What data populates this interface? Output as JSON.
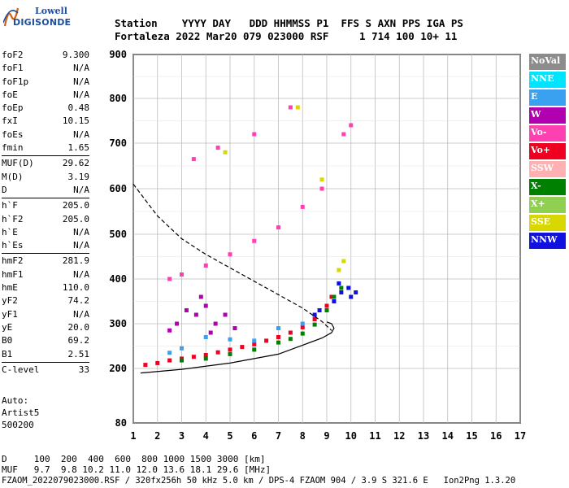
{
  "logo": {
    "line1": "Lowell",
    "line2": "DIGISONDE"
  },
  "header": {
    "line1": "Station    YYYY DAY   DDD HHMMSS P1  FFS S AXN PPS IGA PS",
    "line2": "Fortaleza 2022 Mar20 079 023000 RSF     1 714 100 10+ 11"
  },
  "params": {
    "group1": [
      {
        "name": "foF2",
        "value": "9.300"
      },
      {
        "name": "foF1",
        "value": "N/A"
      },
      {
        "name": "foF1p",
        "value": "N/A"
      },
      {
        "name": "foE",
        "value": "N/A"
      },
      {
        "name": "foEp",
        "value": "0.48"
      },
      {
        "name": "fxI",
        "value": "10.15"
      },
      {
        "name": "foEs",
        "value": "N/A"
      },
      {
        "name": "fmin",
        "value": "1.65"
      }
    ],
    "group2": [
      {
        "name": "MUF(D)",
        "value": "29.62"
      },
      {
        "name": "M(D)",
        "value": "3.19"
      },
      {
        "name": "D",
        "value": "N/A"
      }
    ],
    "group3": [
      {
        "name": "h`F",
        "value": "205.0"
      },
      {
        "name": "h`F2",
        "value": "205.0"
      },
      {
        "name": "h`E",
        "value": "N/A"
      },
      {
        "name": "h`Es",
        "value": "N/A"
      }
    ],
    "group4": [
      {
        "name": "hmF2",
        "value": "281.9"
      },
      {
        "name": "hmF1",
        "value": "N/A"
      },
      {
        "name": "hmE",
        "value": "110.0"
      },
      {
        "name": "yF2",
        "value": "74.2"
      },
      {
        "name": "yF1",
        "value": "N/A"
      },
      {
        "name": "yE",
        "value": "20.0"
      },
      {
        "name": "B0",
        "value": "69.2"
      },
      {
        "name": "B1",
        "value": "2.51"
      }
    ],
    "group5": [
      {
        "name": "C-level",
        "value": "33"
      }
    ]
  },
  "auto": {
    "line1": "Auto:",
    "line2": "Artist5",
    "line3": "500200"
  },
  "legend": [
    {
      "label": "NoVal",
      "color": "#8c8c8c"
    },
    {
      "label": "NNE",
      "color": "#00e5ff"
    },
    {
      "label": "E",
      "color": "#3aa0f0"
    },
    {
      "label": "W",
      "color": "#b000b0"
    },
    {
      "label": "Vo-",
      "color": "#ff40b0"
    },
    {
      "label": "Vo+",
      "color": "#f00020"
    },
    {
      "label": "SSW",
      "color": "#ffb0b0"
    },
    {
      "label": "X-",
      "color": "#008000"
    },
    {
      "label": "X+",
      "color": "#90d050"
    },
    {
      "label": "SSE",
      "color": "#d8d800"
    },
    {
      "label": "NNW",
      "color": "#1010e0"
    }
  ],
  "footer": {
    "line1": "D     100  200  400  600  800 1000 1500 3000 [km]",
    "line2": "MUF   9.7  9.8 10.2 11.0 12.0 13.6 18.1 29.6 [MHz]",
    "line3": "FZAOM_2022079023000.RSF / 320fx256h 50 kHz 5.0 km / DPS-4 FZAOM 904 / 3.9 S 321.6 E   Ion2Png 1.3.20"
  },
  "chart_data": {
    "type": "scatter",
    "xlim": [
      1,
      17
    ],
    "ylim": [
      80,
      900
    ],
    "x_ticks": [
      1,
      2,
      3,
      4,
      5,
      6,
      7,
      8,
      9,
      10,
      11,
      12,
      13,
      14,
      15,
      16,
      17
    ],
    "y_ticks": [
      80,
      200,
      300,
      400,
      500,
      600,
      700,
      800,
      900
    ],
    "y_tick_labels": [
      "80",
      "200",
      "300",
      "400",
      "500",
      "600",
      "700",
      "800",
      "900"
    ],
    "grid": true,
    "legend_position": "right",
    "series": [
      {
        "name": "Vo+",
        "color": "#f00020",
        "points": [
          [
            1.5,
            208
          ],
          [
            2,
            212
          ],
          [
            2.5,
            218
          ],
          [
            3,
            222
          ],
          [
            3.5,
            226
          ],
          [
            4,
            230
          ],
          [
            4.5,
            236
          ],
          [
            5,
            242
          ],
          [
            5.5,
            248
          ],
          [
            6,
            254
          ],
          [
            6.5,
            262
          ],
          [
            7,
            270
          ],
          [
            7.5,
            280
          ],
          [
            8,
            292
          ],
          [
            8.5,
            310
          ],
          [
            9,
            340
          ],
          [
            9.2,
            360
          ]
        ]
      },
      {
        "name": "X-",
        "color": "#008000",
        "points": [
          [
            3,
            218
          ],
          [
            4,
            222
          ],
          [
            5,
            232
          ],
          [
            6,
            242
          ],
          [
            7,
            258
          ],
          [
            7.5,
            266
          ],
          [
            8,
            278
          ],
          [
            8.5,
            298
          ],
          [
            9,
            330
          ],
          [
            9.3,
            360
          ],
          [
            9.6,
            380
          ]
        ]
      },
      {
        "name": "NNW",
        "color": "#1010e0",
        "points": [
          [
            9.3,
            350
          ],
          [
            9.6,
            370
          ],
          [
            9.9,
            380
          ],
          [
            10.2,
            370
          ],
          [
            9.5,
            390
          ],
          [
            10,
            360
          ],
          [
            8.5,
            320
          ],
          [
            8.7,
            330
          ]
        ]
      },
      {
        "name": "W",
        "color": "#b000b0",
        "points": [
          [
            2.8,
            300
          ],
          [
            3.2,
            330
          ],
          [
            3.6,
            320
          ],
          [
            4,
            340
          ],
          [
            4.4,
            300
          ],
          [
            4.8,
            320
          ],
          [
            5.2,
            290
          ],
          [
            2.5,
            285
          ],
          [
            3.8,
            360
          ],
          [
            4.2,
            280
          ]
        ]
      },
      {
        "name": "E",
        "color": "#3aa0f0",
        "points": [
          [
            4,
            270
          ],
          [
            5,
            265
          ],
          [
            6,
            262
          ],
          [
            7,
            290
          ],
          [
            8,
            300
          ],
          [
            2.5,
            235
          ],
          [
            3,
            245
          ]
        ]
      },
      {
        "name": "Vo-",
        "color": "#ff40b0",
        "points": [
          [
            2.5,
            400
          ],
          [
            3,
            410
          ],
          [
            4,
            430
          ],
          [
            5,
            455
          ],
          [
            6,
            485
          ],
          [
            7,
            515
          ],
          [
            8,
            560
          ],
          [
            8.8,
            600
          ],
          [
            3.5,
            665
          ],
          [
            4.5,
            690
          ],
          [
            6,
            720
          ],
          [
            7.5,
            780
          ],
          [
            9.7,
            720
          ],
          [
            10,
            740
          ]
        ]
      },
      {
        "name": "SSE",
        "color": "#d8d800",
        "points": [
          [
            9.5,
            420
          ],
          [
            9.7,
            440
          ],
          [
            8.8,
            620
          ],
          [
            7.8,
            780
          ],
          [
            4.8,
            680
          ]
        ]
      }
    ],
    "curves": [
      {
        "name": "profile",
        "style": "solid",
        "points": [
          [
            1.3,
            190
          ],
          [
            3,
            198
          ],
          [
            5,
            212
          ],
          [
            7,
            232
          ],
          [
            8,
            252
          ],
          [
            8.8,
            268
          ],
          [
            9.2,
            280
          ],
          [
            9.3,
            290
          ],
          [
            9.2,
            300
          ],
          [
            9,
            304
          ]
        ]
      },
      {
        "name": "virtual-height-dashed",
        "style": "dashed",
        "points": [
          [
            1.0,
            610
          ],
          [
            2,
            540
          ],
          [
            3,
            490
          ],
          [
            4,
            455
          ],
          [
            5,
            425
          ],
          [
            6,
            395
          ],
          [
            7,
            365
          ],
          [
            8,
            335
          ],
          [
            8.8,
            305
          ],
          [
            9.2,
            285
          ]
        ]
      }
    ]
  }
}
